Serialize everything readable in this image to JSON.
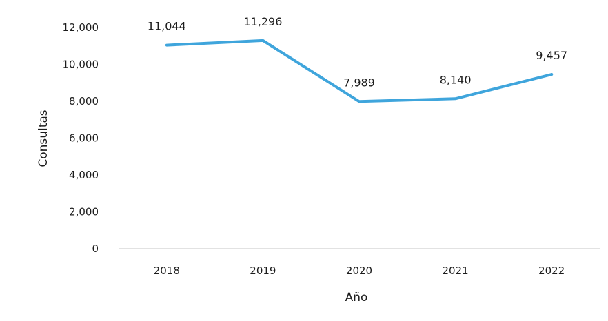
{
  "chart_data": {
    "type": "line",
    "title": "",
    "xlabel": "Año",
    "ylabel": "Consultas",
    "categories": [
      "2018",
      "2019",
      "2020",
      "2021",
      "2022"
    ],
    "series": [
      {
        "values": [
          11044,
          11296,
          7989,
          8140,
          9457
        ],
        "labels": [
          "11,044",
          "11,296",
          "7,989",
          "8,140",
          "9,457"
        ],
        "color": "#3fa5dc"
      }
    ],
    "y_ticks": [
      "0",
      "2,000",
      "4,000",
      "6,000",
      "8,000",
      "10,000",
      "12,000"
    ],
    "y_tick_values": [
      0,
      2000,
      4000,
      6000,
      8000,
      10000,
      12000
    ],
    "ylim": [
      0,
      12000
    ],
    "grid": false,
    "legend": "none",
    "baseline_color": "#d9d9d9"
  }
}
